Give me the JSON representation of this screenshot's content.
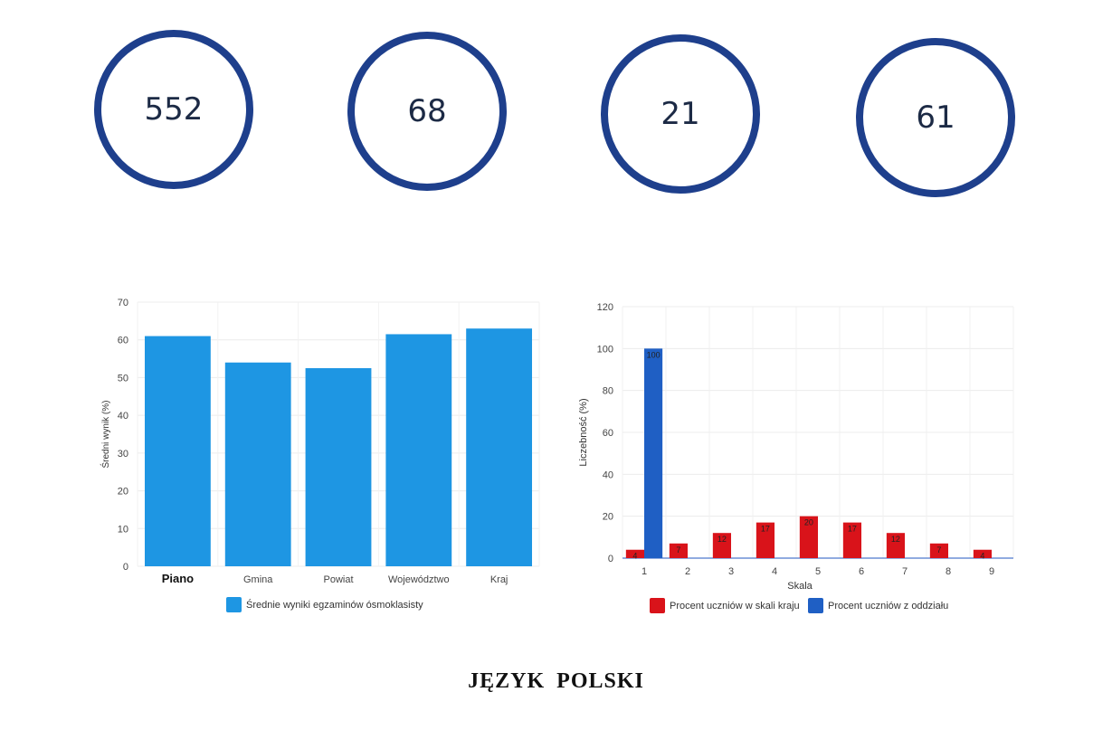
{
  "stats": [
    "552",
    "68",
    "21",
    "61"
  ],
  "colors": {
    "ring": "#1e3f8c",
    "bar_left": "#1e96e3",
    "series_red": "#d9131a",
    "series_blue": "#1f5fc4"
  },
  "footer_title": "JĘZYK POLSKI",
  "chart_data": [
    {
      "type": "bar",
      "categories": [
        "Piano",
        "Gmina",
        "Powiat",
        "Województwo",
        "Kraj"
      ],
      "series": [
        {
          "name": "Średnie wyniki egzaminów ósmoklasisty",
          "values": [
            61,
            54,
            52.5,
            61.5,
            63
          ]
        }
      ],
      "ylabel": "Średni wynik (%)",
      "ylim": [
        0,
        70
      ],
      "yticks": [
        0,
        10,
        20,
        30,
        40,
        50,
        60,
        70
      ],
      "legend": "bottom"
    },
    {
      "type": "bar",
      "categories": [
        "1",
        "2",
        "3",
        "4",
        "5",
        "6",
        "7",
        "8",
        "9"
      ],
      "series": [
        {
          "name": "Procent uczniów w skali kraju",
          "values": [
            4,
            7,
            12,
            17,
            20,
            17,
            12,
            7,
            4
          ]
        },
        {
          "name": "Procent uczniów z oddziału",
          "values": [
            100,
            0,
            0,
            0,
            0,
            0,
            0,
            0,
            0
          ]
        }
      ],
      "xlabel": "Skala",
      "ylabel": "Liczebność (%)",
      "ylim": [
        0,
        120
      ],
      "yticks": [
        0,
        20,
        40,
        60,
        80,
        100,
        120
      ],
      "legend": "bottom",
      "data_labels": true
    }
  ]
}
